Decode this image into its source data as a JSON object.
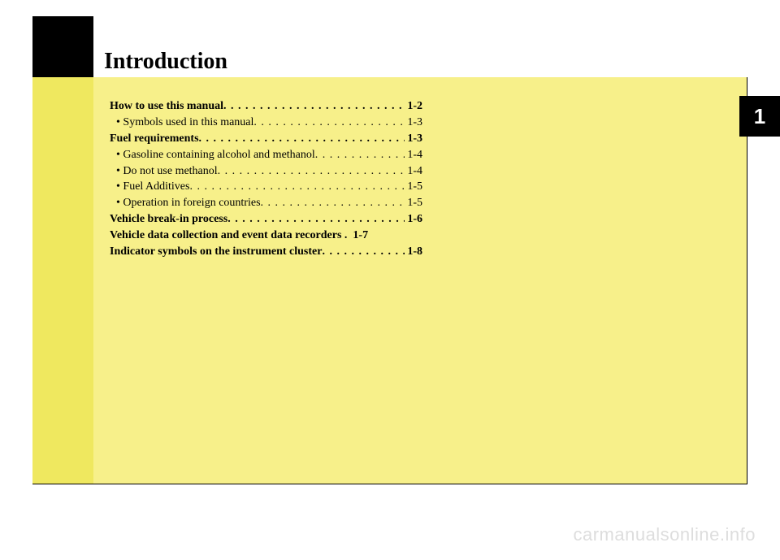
{
  "title": "Introduction",
  "chapter_number": "1",
  "toc": [
    {
      "label": "How to use this manual",
      "page": "1-2",
      "bold": true,
      "sub": false
    },
    {
      "label": "• Symbols used in this manual",
      "page": "1-3",
      "bold": false,
      "sub": true
    },
    {
      "label": "Fuel requirements",
      "page": "1-3",
      "bold": true,
      "sub": false
    },
    {
      "label": "• Gasoline containing alcohol and methanol",
      "page": "1-4",
      "bold": false,
      "sub": true
    },
    {
      "label": "• Do not use methanol",
      "page": "1-4",
      "bold": false,
      "sub": true
    },
    {
      "label": "• Fuel Additives",
      "page": "1-5",
      "bold": false,
      "sub": true
    },
    {
      "label": "• Operation in foreign countries",
      "page": "1-5",
      "bold": false,
      "sub": true
    },
    {
      "label": "Vehicle break-in process",
      "page": "1-6",
      "bold": true,
      "sub": false
    },
    {
      "label": "Vehicle data collection and event data recorders .",
      "page": "1-7",
      "bold": true,
      "sub": false,
      "nodots": true
    },
    {
      "label": "Indicator symbols on the instrument cluster",
      "page": "1-8",
      "bold": true,
      "sub": false
    }
  ],
  "watermark": "carmanualsonline.info",
  "colors": {
    "yellow_main": "#f7f08a",
    "yellow_dark": "#efe85f",
    "black": "#000000",
    "watermark": "#dddddd"
  }
}
